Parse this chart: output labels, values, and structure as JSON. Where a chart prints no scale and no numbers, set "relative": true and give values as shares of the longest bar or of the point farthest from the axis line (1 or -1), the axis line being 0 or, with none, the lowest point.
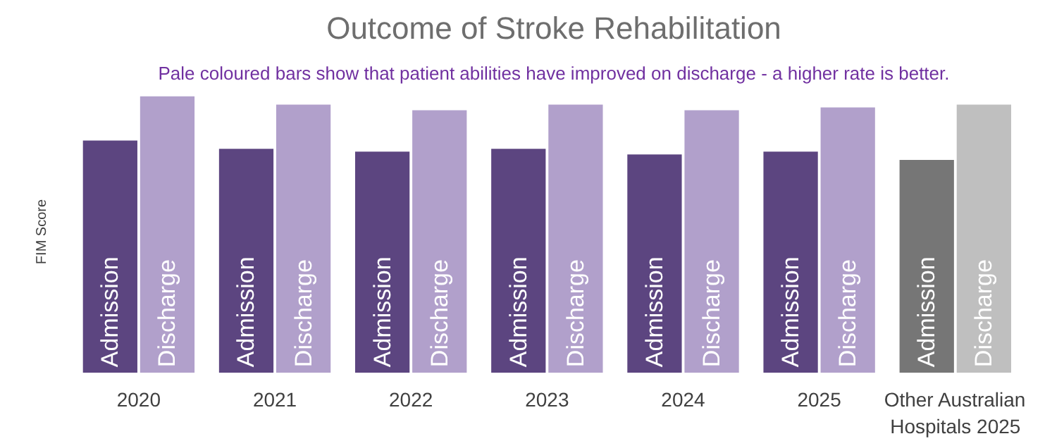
{
  "chart_data": {
    "type": "bar",
    "title": "Outcome of Stroke Rehabilitation",
    "ylabel": "FIM Score",
    "relative": true,
    "grid": false,
    "annotations": [
      "Pale coloured bars show that patient abilities have improved on discharge - a higher rate is better."
    ],
    "categories": [
      "2020",
      "2021",
      "2022",
      "2023",
      "2024",
      "2025",
      "Other Australian Hospitals 2025"
    ],
    "series": [
      {
        "name": "Admission",
        "colors": [
          "#5c4580",
          "#5c4580",
          "#5c4580",
          "#5c4580",
          "#5c4580",
          "#5c4580",
          "#767676"
        ],
        "values": [
          0.84,
          0.81,
          0.8,
          0.81,
          0.79,
          0.8,
          0.77
        ]
      },
      {
        "name": "Discharge",
        "colors": [
          "#b1a0cb",
          "#b1a0cb",
          "#b1a0cb",
          "#b1a0cb",
          "#b1a0cb",
          "#b1a0cb",
          "#bfbfbf"
        ],
        "values": [
          1,
          0.97,
          0.95,
          0.97,
          0.95,
          0.96,
          0.97
        ]
      }
    ]
  }
}
